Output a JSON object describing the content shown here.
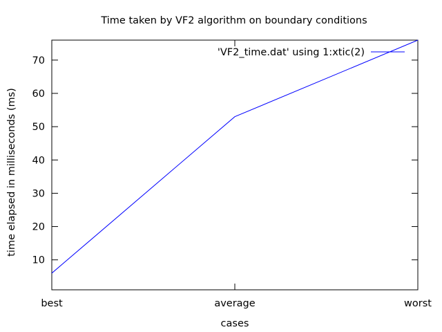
{
  "chart_data": {
    "type": "line",
    "title": "Time taken by VF2 algorithm on boundary conditions",
    "xlabel": "cases",
    "ylabel": "time elapsed in milliseconds (ms)",
    "categories": [
      "best",
      "average",
      "worst"
    ],
    "series": [
      {
        "name": "'VF2_time.dat' using 1:xtic(2)",
        "values": [
          6,
          53,
          76
        ],
        "color": "#0000ff"
      }
    ],
    "ylim": [
      1,
      76
    ],
    "yticks": [
      10,
      20,
      30,
      40,
      50,
      60,
      70
    ],
    "grid": false,
    "legend_position": "top-right"
  }
}
